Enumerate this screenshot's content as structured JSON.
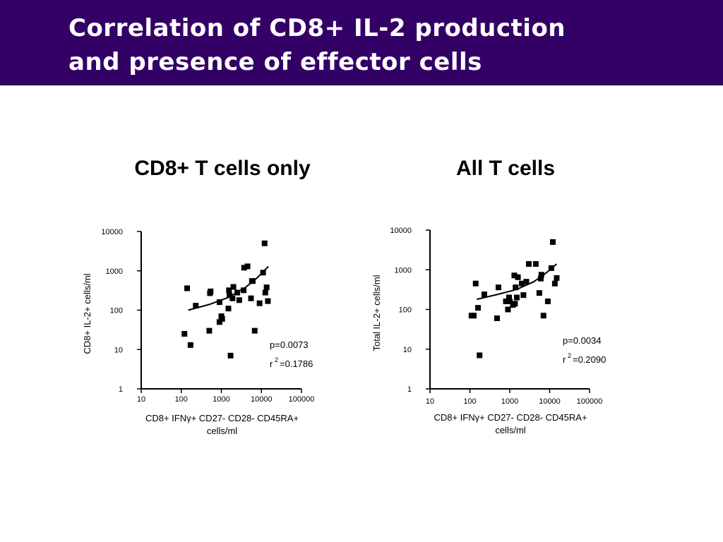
{
  "header": {
    "title_line1": "Correlation of CD8+ IL-2 production",
    "title_line2": "and presence of effector cells",
    "background": "#330066"
  },
  "panels": [
    {
      "heading": "CD8+ T cells only"
    },
    {
      "heading": "All T cells"
    }
  ],
  "chart_data": [
    {
      "type": "scatter",
      "title": "CD8+ T cells only",
      "x_scale": "log",
      "y_scale": "log",
      "xlim": [
        10,
        100000
      ],
      "ylim": [
        1,
        10000
      ],
      "x_ticks": [
        "10",
        "100",
        "1000",
        "10000",
        "100000"
      ],
      "y_ticks": [
        "1",
        "10",
        "100",
        "1000",
        "10000"
      ],
      "xlabel_parts": [
        "CD8+ IFN",
        "γ",
        "+ CD27- CD28- CD45RA+"
      ],
      "xlabel_line2": "cells/ml",
      "ylabel": "CD8+ IL-2+ cells/ml",
      "stats": {
        "p": "p=0.0073",
        "r_label": "r",
        "r_sup": "2",
        "r_value": "=0.1786"
      },
      "points": [
        [
          120,
          25
        ],
        [
          140,
          360
        ],
        [
          170,
          13
        ],
        [
          230,
          130
        ],
        [
          500,
          30
        ],
        [
          520,
          270
        ],
        [
          540,
          300
        ],
        [
          900,
          50
        ],
        [
          900,
          160
        ],
        [
          1000,
          70
        ],
        [
          1050,
          60
        ],
        [
          1500,
          110
        ],
        [
          1550,
          320
        ],
        [
          1600,
          240
        ],
        [
          1700,
          7
        ],
        [
          1900,
          200
        ],
        [
          2000,
          390
        ],
        [
          2500,
          280
        ],
        [
          2800,
          180
        ],
        [
          3600,
          320
        ],
        [
          3700,
          1200
        ],
        [
          4500,
          1300
        ],
        [
          5500,
          200
        ],
        [
          5800,
          550
        ],
        [
          6100,
          550
        ],
        [
          6800,
          30
        ],
        [
          9000,
          150
        ],
        [
          11000,
          900
        ],
        [
          12000,
          5000
        ],
        [
          12500,
          280
        ],
        [
          13500,
          380
        ],
        [
          14500,
          170
        ]
      ],
      "fit": [
        [
          150,
          100
        ],
        [
          500,
          140
        ],
        [
          1500,
          210
        ],
        [
          4000,
          380
        ],
        [
          8000,
          680
        ],
        [
          15000,
          1300
        ]
      ]
    },
    {
      "type": "scatter",
      "title": "All T cells",
      "x_scale": "log",
      "y_scale": "log",
      "xlim": [
        10,
        100000
      ],
      "ylim": [
        1,
        10000
      ],
      "x_ticks": [
        "10",
        "100",
        "1000",
        "10000",
        "100000"
      ],
      "y_ticks": [
        "1",
        "10",
        "100",
        "1000",
        "10000"
      ],
      "xlabel_parts": [
        "CD8+ IFN",
        "γ",
        "+ CD27- CD28- CD45RA+"
      ],
      "xlabel_line2": "cells/ml",
      "ylabel": "Total IL-2+ cells/ml",
      "stats": {
        "p": "p=0.0034",
        "r_label": "r",
        "r_sup": "2",
        "r_value": "=0.2090"
      },
      "points": [
        [
          110,
          70
        ],
        [
          125,
          70
        ],
        [
          140,
          450
        ],
        [
          160,
          110
        ],
        [
          175,
          7
        ],
        [
          230,
          240
        ],
        [
          480,
          60
        ],
        [
          520,
          360
        ],
        [
          800,
          160
        ],
        [
          900,
          100
        ],
        [
          960,
          200
        ],
        [
          1000,
          160
        ],
        [
          1200,
          130
        ],
        [
          1300,
          720
        ],
        [
          1350,
          140
        ],
        [
          1400,
          360
        ],
        [
          1500,
          200
        ],
        [
          1600,
          650
        ],
        [
          2000,
          450
        ],
        [
          2200,
          230
        ],
        [
          2600,
          500
        ],
        [
          3000,
          1400
        ],
        [
          4500,
          1400
        ],
        [
          5500,
          260
        ],
        [
          6000,
          600
        ],
        [
          6200,
          750
        ],
        [
          7000,
          70
        ],
        [
          9000,
          160
        ],
        [
          11000,
          1100
        ],
        [
          12000,
          5000
        ],
        [
          13500,
          450
        ],
        [
          15000,
          620
        ]
      ],
      "fit": [
        [
          150,
          180
        ],
        [
          500,
          240
        ],
        [
          1500,
          320
        ],
        [
          4000,
          500
        ],
        [
          8000,
          820
        ],
        [
          15000,
          1400
        ]
      ]
    }
  ]
}
